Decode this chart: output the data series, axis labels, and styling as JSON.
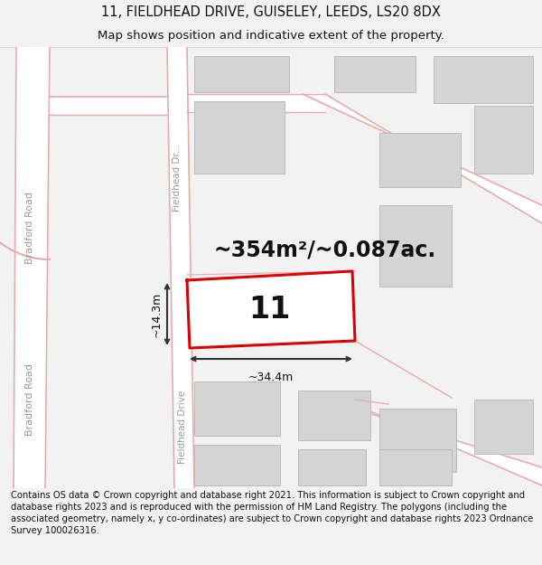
{
  "title": "11, FIELDHEAD DRIVE, GUISELEY, LEEDS, LS20 8DX",
  "subtitle": "Map shows position and indicative extent of the property.",
  "footer": "Contains OS data © Crown copyright and database right 2021. This information is subject to Crown copyright and database rights 2023 and is reproduced with the permission of HM Land Registry. The polygons (including the associated geometry, namely x, y co-ordinates) are subject to Crown copyright and database rights 2023 Ordnance Survey 100026316.",
  "area_text": "~354m²/~0.087ac.",
  "property_number": "11",
  "dim_width": "~34.4m",
  "dim_height": "~14.3m",
  "bg_color": "#f2f2f2",
  "map_bg": "#f7f5f5",
  "white": "#ffffff",
  "road_line_color": "#e8aaaa",
  "road_fill": "#ffffff",
  "property_fill": "#ffffff",
  "property_edge": "#dd0000",
  "building_fill": "#d4d4d4",
  "building_edge": "#bbbbbb",
  "road_label_color": "#999999",
  "dim_color": "#333333",
  "text_color": "#111111",
  "title_fs": 10.5,
  "subtitle_fs": 9.5,
  "footer_fs": 7.2,
  "area_fs": 17,
  "num_fs": 24,
  "dim_fs": 9,
  "road_lbl_fs": 8
}
